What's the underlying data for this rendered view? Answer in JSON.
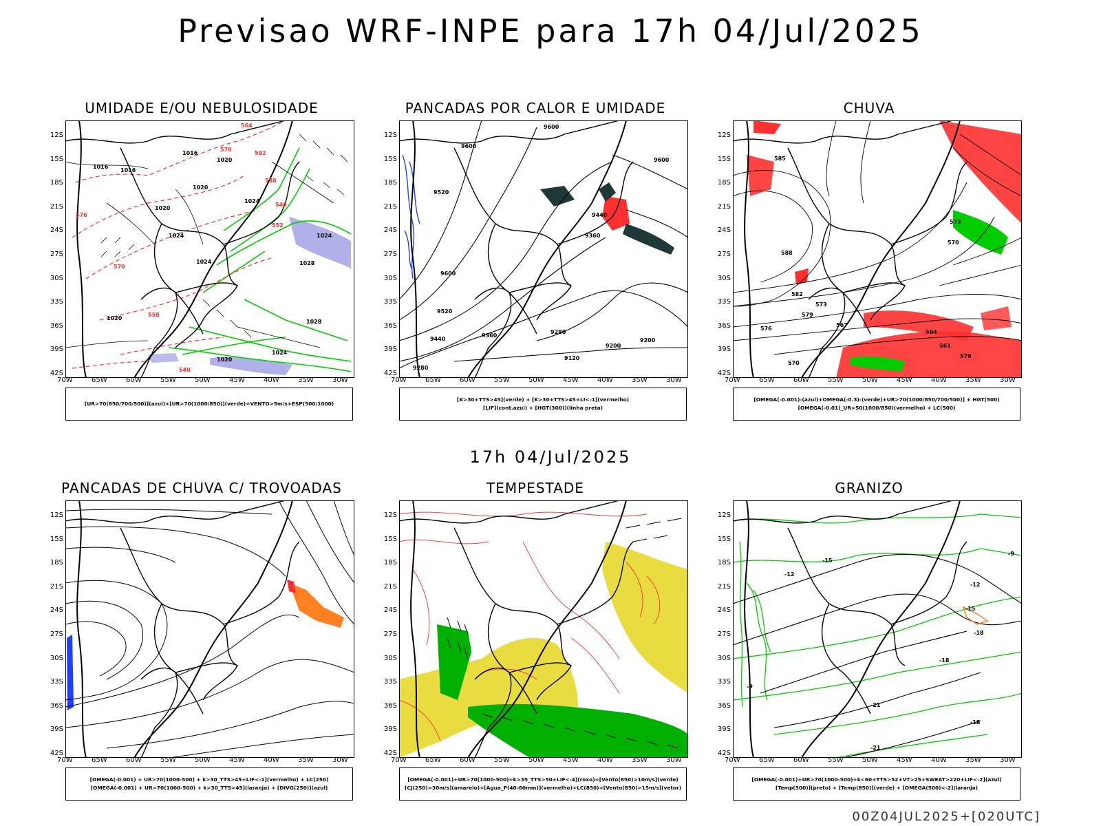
{
  "main_title": "Previsao WRF-INPE  para 17h 04/Jul/2025",
  "mid_title": "17h 04/Jul/2025",
  "footer": "00Z04JUL2025+[020UTC]",
  "lat_labels": [
    "12S",
    "15S",
    "18S",
    "21S",
    "24S",
    "27S",
    "30S",
    "33S",
    "36S",
    "39S",
    "42S"
  ],
  "lon_labels": [
    "70W",
    "65W",
    "60W",
    "55W",
    "50W",
    "45W",
    "40W",
    "35W",
    "30W"
  ],
  "colors": {
    "red": "#ff3030",
    "green": "#00cc00",
    "blue": "#2040ff",
    "yellow": "#e8dc40",
    "orange": "#ff8020",
    "lavender": "#9090e0",
    "darkteal": "#203838"
  },
  "panels": [
    {
      "title": "UMIDADE E/OU NEBULOSIDADE",
      "legend": [
        "[UR>70(850/700/500)](azul)+[UR>70(1000/850)](verde)+VENTO>5m/s+ESP(500/1000)"
      ],
      "contour_labels": [
        "1016",
        "1016",
        "1016",
        "1020",
        "1020",
        "1020",
        "1024",
        "1024",
        "1024",
        "1024",
        "1028",
        "1020",
        "1028",
        "1024",
        "1020",
        "564",
        "570",
        "582",
        "576",
        "588",
        "552",
        "546",
        "540",
        "558",
        "570"
      ]
    },
    {
      "title": "PANCADAS POR CALOR E UMIDADE",
      "legend": [
        "[K>30+TTS>45](verde) + [K>30+TTS>45+LI<-1](vermelho)",
        "[LIF](cont.azul) + [HGT(300)](linha preta)"
      ],
      "contour_labels": [
        "9600",
        "9600",
        "9600",
        "9520",
        "9440",
        "9360",
        "9600",
        "9520",
        "9440",
        "9360",
        "9280",
        "9200",
        "9120",
        "9280",
        "9200"
      ]
    },
    {
      "title": "CHUVA",
      "legend": [
        "[OMEGA(-0.001)-(azul)+OMEGA(-0.3)-(verde)+UR>70(1000/850/700/500)] + HGT(500)",
        "[OMEGA(-0.01)_UR>50(1000/850)(vermelho) + LC(500)"
      ],
      "contour_labels": [
        "585",
        "588",
        "582",
        "576",
        "579",
        "570",
        "573",
        "567",
        "564",
        "561",
        "576",
        "573",
        "570"
      ]
    },
    {
      "title": "PANCADAS DE CHUVA C/ TROVOADAS",
      "legend": [
        "[OMEGA(-0.001) + UR>70(1000-500) + k>30_TTS>45+LIF<-1](vermelho) + LC(250)",
        "[OMEGA(-0.001) + UR>70(1000-500) + k>30_TTS>45](laranja) + [DIVG(250)](azul)"
      ],
      "contour_labels": []
    },
    {
      "title": "TEMPESTADE",
      "legend": [
        "[OMEGA(-0.001)+UR>70(1000-500)+k>35_TTS>50+LIF<-4](roxo)+[Vento(850)>10m/s](verde)",
        "[CJ(250)>30m/s](amarelo)+[Agua_P(40-60mm)](vermelho)+LC(850)+[Vento(850)>15m/s](vetor)"
      ],
      "contour_labels": []
    },
    {
      "title": "GRANIZO",
      "legend": [
        "[OMEGA(-0.001)+UR>70(1000-500)+k<60+TTS>52+VT>25+SWEAT>220+LIF<-2](azul)",
        "[Temp(500)](preto) + [Temp(850)](verde) + [OMEGA(500)<-2](laranja)"
      ],
      "contour_labels": [
        "-9",
        "-12",
        "-15",
        "-18",
        "-21",
        "-9",
        "-12",
        "-15",
        "-18",
        "-21",
        "-18"
      ]
    }
  ]
}
